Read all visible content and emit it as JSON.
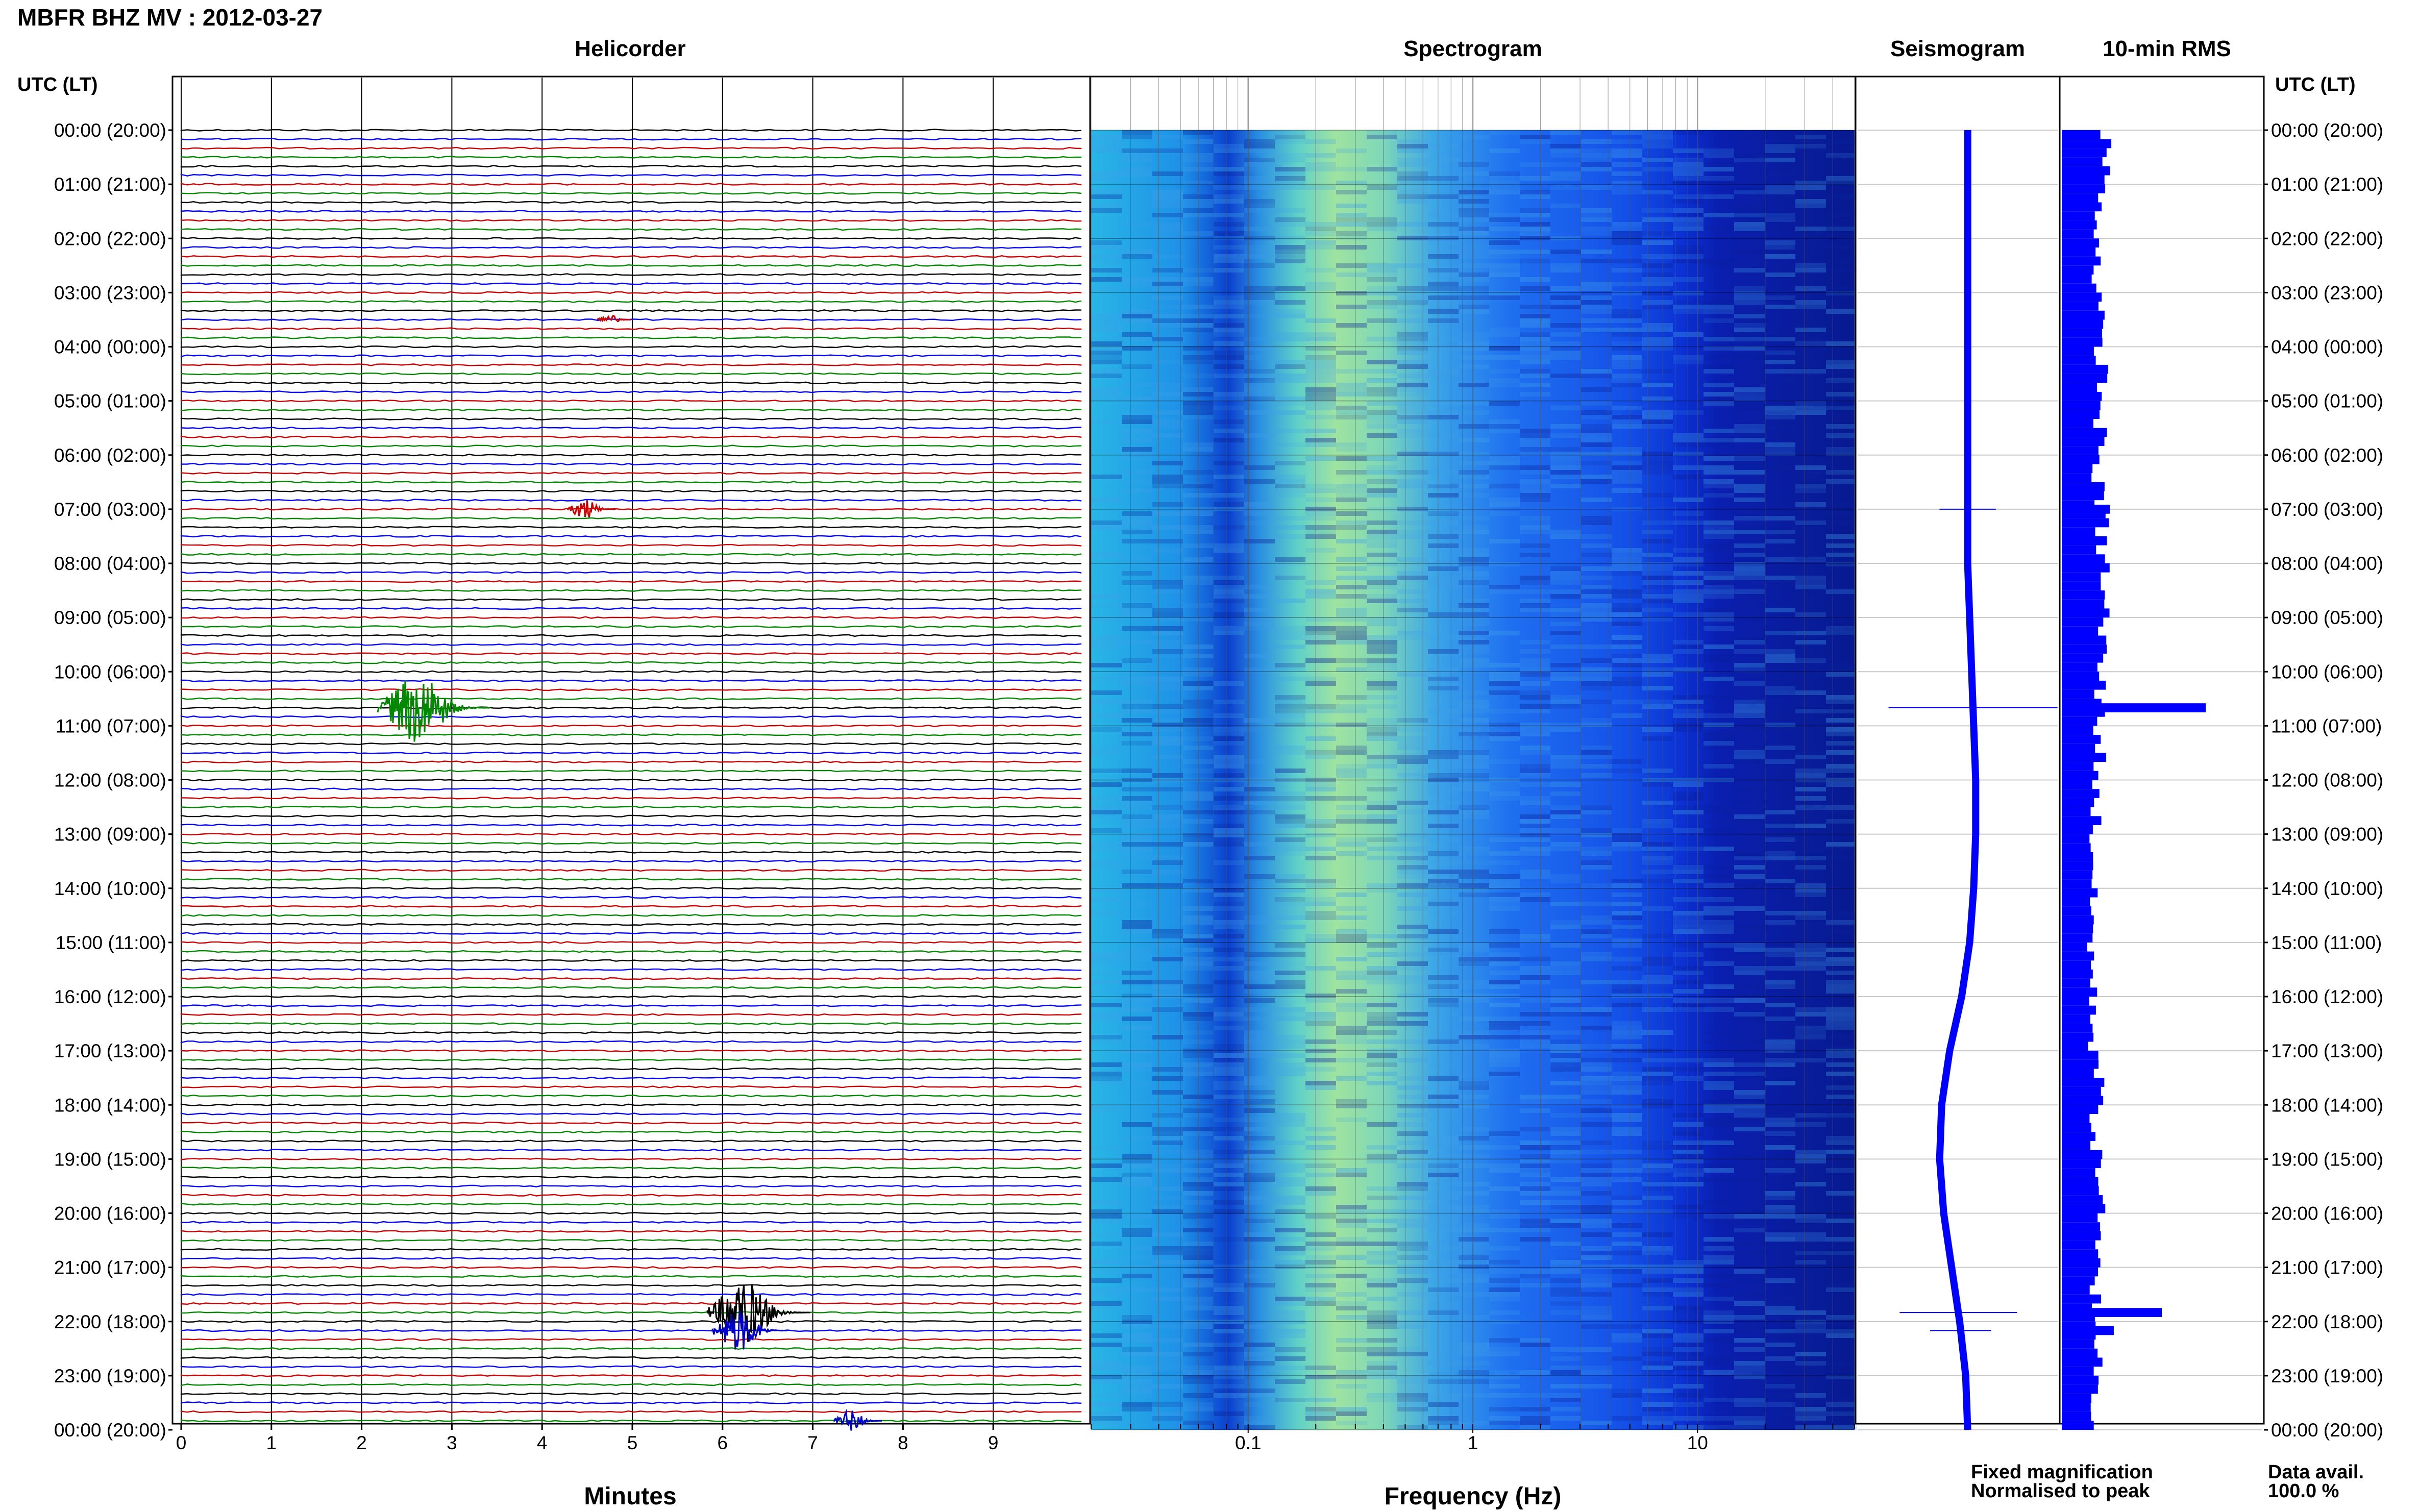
{
  "title": "MBFR BHZ MV : 2012-03-27",
  "left_axis_label": "UTC (LT)",
  "right_axis_label": "UTC (LT)",
  "panels": {
    "helicorder": "Helicorder",
    "spectrogram": "Spectrogram",
    "seismogram": "Seismogram",
    "rms": "10-min RMS"
  },
  "time_labels": [
    "00:00 (20:00)",
    "01:00 (21:00)",
    "02:00 (22:00)",
    "03:00 (23:00)",
    "04:00 (00:00)",
    "05:00 (01:00)",
    "06:00 (02:00)",
    "07:00 (03:00)",
    "08:00 (04:00)",
    "09:00 (05:00)",
    "10:00 (06:00)",
    "11:00 (07:00)",
    "12:00 (08:00)",
    "13:00 (09:00)",
    "14:00 (10:00)",
    "15:00 (11:00)",
    "16:00 (12:00)",
    "17:00 (13:00)",
    "18:00 (14:00)",
    "19:00 (15:00)",
    "20:00 (16:00)",
    "21:00 (17:00)",
    "22:00 (18:00)",
    "23:00 (19:00)",
    "00:00 (20:00)"
  ],
  "helicorder_xlabel": "Minutes",
  "helicorder_ticks": [
    "0",
    "1",
    "2",
    "3",
    "4",
    "5",
    "6",
    "7",
    "8",
    "9"
  ],
  "spectrogram_xlabel": "Frequency (Hz)",
  "spectrogram_ticks": [
    "0.1",
    "1",
    "10"
  ],
  "legend": {
    "fixed": "Fixed magnification",
    "fixed_color": "#0000ff",
    "normalised": "Normalised to peak",
    "normalised_color": "#ff0000"
  },
  "data_avail_label": "Data avail.",
  "data_avail_value": "100.0 %",
  "colors": {
    "trace_cycle": [
      "#000000",
      "#0000ff",
      "#cc0000",
      "#008800"
    ],
    "spectrogram_low": "#00008b",
    "spectrogram_high": "#f0e68c",
    "seismogram": "#0000ff",
    "rms": "#0000ff"
  },
  "chart_data": [
    {
      "type": "line",
      "name": "Helicorder",
      "x_unit": "minutes",
      "xlim": [
        0,
        10
      ],
      "rows": 144,
      "row_minutes": 10,
      "events": [
        {
          "time_utc": "10:40",
          "minute": 2.8,
          "color": "green",
          "relative_amplitude": 1.0
        },
        {
          "time_utc": "21:50",
          "minute": 6.4,
          "color": "black",
          "relative_amplitude": 0.9
        },
        {
          "time_utc": "22:10",
          "minute": 6.3,
          "color": "blue",
          "relative_amplitude": 0.6
        },
        {
          "time_utc": "07:00",
          "minute": 4.55,
          "color": "red",
          "relative_amplitude": 0.3
        },
        {
          "time_utc": "03:30",
          "minute": 4.8,
          "color": "red",
          "relative_amplitude": 0.15
        },
        {
          "time_utc": "23:50",
          "minute": 7.5,
          "color": "blue",
          "relative_amplitude": 0.3
        }
      ]
    },
    {
      "type": "heatmap",
      "name": "Spectrogram",
      "x_scale": "log",
      "xlim_hz": [
        0.02,
        50
      ],
      "x_ticks_hz": [
        0.1,
        1,
        10
      ],
      "peak_band_hz": [
        0.15,
        0.5
      ]
    },
    {
      "type": "line",
      "name": "Seismogram",
      "y_ticks_utc": [
        "00:00",
        "01:00",
        "02:00",
        "03:00",
        "04:00",
        "05:00",
        "06:00",
        "07:00",
        "08:00",
        "09:00",
        "10:00",
        "11:00",
        "12:00",
        "13:00",
        "14:00",
        "15:00",
        "16:00",
        "17:00",
        "18:00",
        "19:00",
        "20:00",
        "21:00",
        "22:00",
        "23:00",
        "00:00"
      ],
      "relative_offset": [
        0.55,
        0.55,
        0.55,
        0.55,
        0.55,
        0.55,
        0.55,
        0.55,
        0.55,
        0.56,
        0.57,
        0.58,
        0.59,
        0.59,
        0.58,
        0.56,
        0.52,
        0.46,
        0.42,
        0.41,
        0.43,
        0.47,
        0.51,
        0.54,
        0.55
      ]
    },
    {
      "type": "bar",
      "name": "10-min RMS",
      "orientation": "horizontal",
      "hour_values": [
        0.22,
        0.19,
        0.18,
        0.18,
        0.2,
        0.19,
        0.18,
        0.2,
        0.21,
        0.2,
        0.19,
        0.19,
        0.17,
        0.16,
        0.15,
        0.15,
        0.16,
        0.18,
        0.17,
        0.19,
        0.17,
        0.17,
        0.18,
        0.17
      ],
      "spikes": [
        {
          "time_utc": "10:40",
          "value": 0.72
        },
        {
          "time_utc": "21:50",
          "value": 0.5
        },
        {
          "time_utc": "22:10",
          "value": 0.26
        },
        {
          "time_utc": "07:00",
          "value": 0.24
        }
      ]
    }
  ]
}
